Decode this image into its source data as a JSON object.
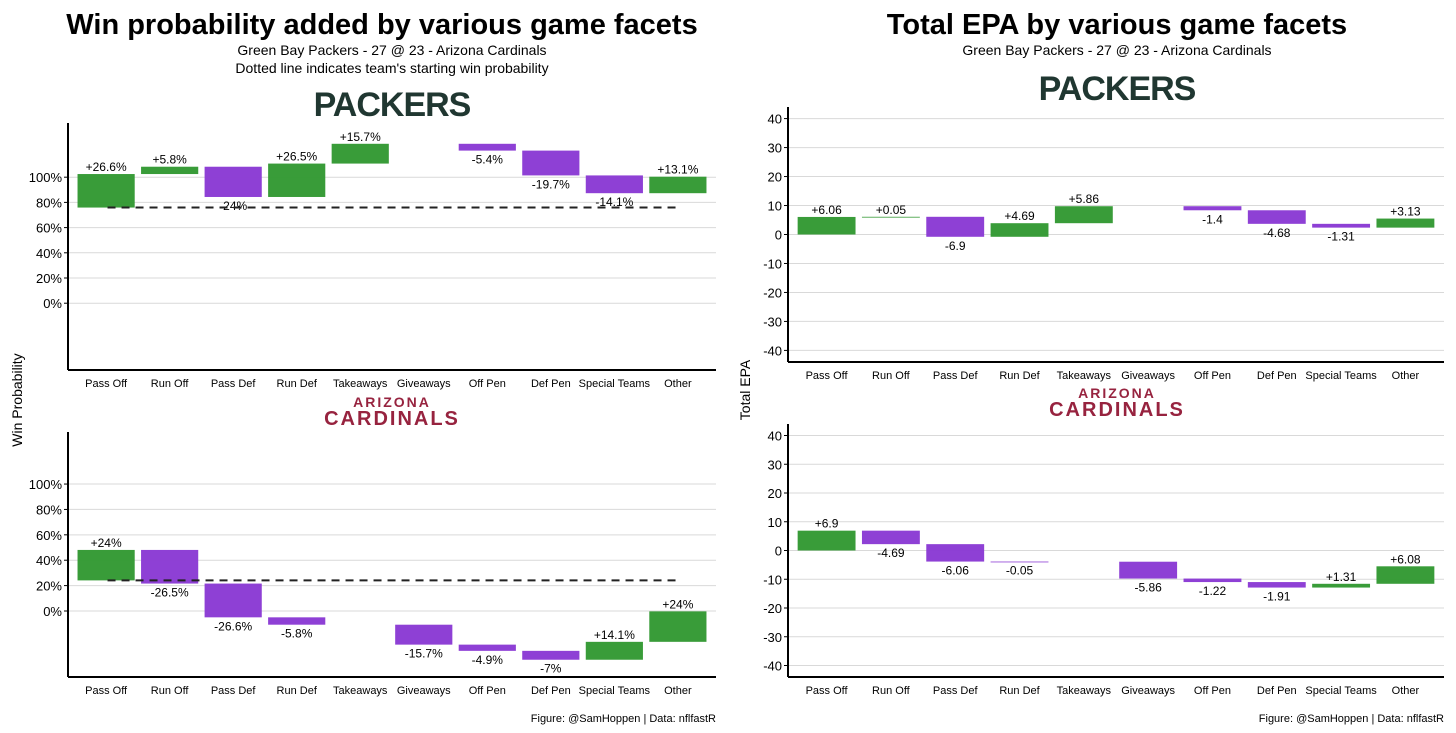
{
  "colors": {
    "positive": "#339933",
    "negative": "#8a3ad4",
    "grid": "#d9d9d9",
    "packers": "#203731",
    "cardinals": "#97233f"
  },
  "left": {
    "title": "Win probability added by various game facets",
    "subtitle": "Green Bay Packers - 27 @ 23 - Arizona Cardinals",
    "note": "Dotted line indicates team's starting win probability",
    "ylabel": "Win Probability",
    "caption": "Figure: @SamHoppen | Data: nflfastR"
  },
  "right": {
    "title": "Total EPA by various game facets",
    "subtitle": "Green Bay Packers - 27 @ 23 - Arizona Cardinals",
    "ylabel": "Total EPA",
    "caption": "Figure: @SamHoppen | Data: nflfastR"
  },
  "logos": {
    "packers": "PACKERS",
    "cardinals_top": "ARIZONA",
    "cardinals_bottom": "CARDINALS"
  },
  "chart_data": [
    {
      "type": "bar",
      "subtype": "waterfall",
      "team": "Green Bay Packers",
      "metric": "Win probability added",
      "categories": [
        "Pass Off",
        "Run Off",
        "Pass Def",
        "Run Def",
        "Takeaways",
        "Giveaways",
        "Off Pen",
        "Def Pen",
        "Special Teams",
        "Other"
      ],
      "values": [
        26.6,
        5.8,
        -24,
        26.5,
        15.7,
        null,
        -5.4,
        -19.7,
        -14.1,
        13.1
      ],
      "labels": [
        "+26.6%",
        "+5.8%",
        "-24%",
        "+26.5%",
        "+15.7%",
        "",
        "-5.4%",
        "-19.7%",
        "-14.1%",
        "+13.1%"
      ],
      "start": 75.9,
      "ylim": [
        -53,
        143
      ],
      "yticks": [
        0,
        20,
        40,
        60,
        80,
        100
      ],
      "ytick_labels": [
        "0%",
        "20%",
        "40%",
        "60%",
        "80%",
        "100%"
      ],
      "grid": true
    },
    {
      "type": "bar",
      "subtype": "waterfall",
      "team": "Arizona Cardinals",
      "metric": "Win probability added",
      "categories": [
        "Pass Off",
        "Run Off",
        "Pass Def",
        "Run Def",
        "Takeaways",
        "Giveaways",
        "Off Pen",
        "Def Pen",
        "Special Teams",
        "Other"
      ],
      "values": [
        24,
        -26.5,
        -26.6,
        -5.8,
        null,
        -15.7,
        -4.9,
        -7,
        14.1,
        24
      ],
      "labels": [
        "+24%",
        "-26.5%",
        "-26.6%",
        "-5.8%",
        "",
        "-15.7%",
        "-4.9%",
        "-7%",
        "+14.1%",
        "+24%"
      ],
      "start": 24.1,
      "ylim": [
        -52,
        141
      ],
      "yticks": [
        0,
        20,
        40,
        60,
        80,
        100
      ],
      "ytick_labels": [
        "0%",
        "20%",
        "40%",
        "60%",
        "80%",
        "100%"
      ],
      "grid": true
    },
    {
      "type": "bar",
      "subtype": "waterfall",
      "team": "Green Bay Packers",
      "metric": "Total EPA",
      "categories": [
        "Pass Off",
        "Run Off",
        "Pass Def",
        "Run Def",
        "Takeaways",
        "Giveaways",
        "Off Pen",
        "Def Pen",
        "Special Teams",
        "Other"
      ],
      "values": [
        6.06,
        0.05,
        -6.9,
        4.69,
        5.86,
        null,
        -1.4,
        -4.68,
        -1.31,
        3.13
      ],
      "labels": [
        "+6.06",
        "+0.05",
        "-6.9",
        "+4.69",
        "+5.86",
        "",
        "-1.4",
        "-4.68",
        "-1.31",
        "+3.13"
      ],
      "start": 0,
      "ylim": [
        -44,
        44
      ],
      "yticks": [
        -40,
        -30,
        -20,
        -10,
        0,
        10,
        20,
        30,
        40
      ],
      "ytick_labels": [
        "-40",
        "-30",
        "-20",
        "-10",
        "0",
        "10",
        "20",
        "30",
        "40"
      ],
      "grid": true
    },
    {
      "type": "bar",
      "subtype": "waterfall",
      "team": "Arizona Cardinals",
      "metric": "Total EPA",
      "categories": [
        "Pass Off",
        "Run Off",
        "Pass Def",
        "Run Def",
        "Takeaways",
        "Giveaways",
        "Off Pen",
        "Def Pen",
        "Special Teams",
        "Other"
      ],
      "values": [
        6.9,
        -4.69,
        -6.06,
        -0.05,
        null,
        -5.86,
        -1.22,
        -1.91,
        1.31,
        6.08
      ],
      "labels": [
        "+6.9",
        "-4.69",
        "-6.06",
        "-0.05",
        "",
        "-5.86",
        "-1.22",
        "-1.91",
        "+1.31",
        "+6.08"
      ],
      "start": 0,
      "ylim": [
        -44,
        44
      ],
      "yticks": [
        -40,
        -30,
        -20,
        -10,
        0,
        10,
        20,
        30,
        40
      ],
      "ytick_labels": [
        "-40",
        "-30",
        "-20",
        "-10",
        "0",
        "10",
        "20",
        "30",
        "40"
      ],
      "grid": true
    }
  ]
}
